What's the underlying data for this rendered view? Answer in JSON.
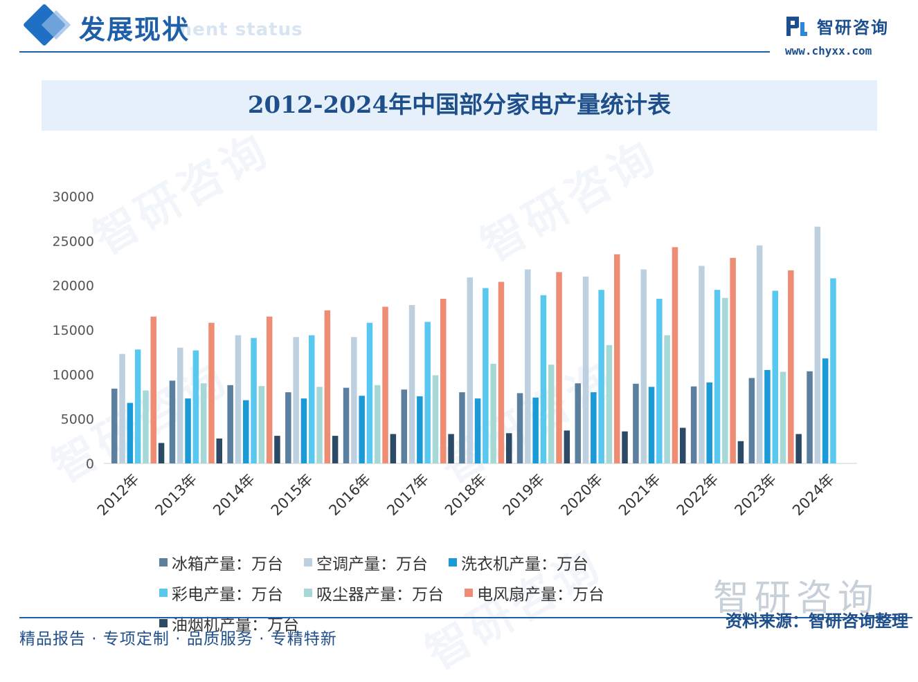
{
  "header": {
    "section_title": "发展现状",
    "section_subtitle": "ment status",
    "logo_name": "智研咨询",
    "logo_url": "www.chyxx.com"
  },
  "chart_data": {
    "type": "bar",
    "title": "2012-2024年中国部分家电产量统计表",
    "categories": [
      "2012年",
      "2013年",
      "2014年",
      "2015年",
      "2016年",
      "2017年",
      "2018年",
      "2019年",
      "2020年",
      "2021年",
      "2022年",
      "2023年",
      "2024年"
    ],
    "ylim": [
      0,
      30000
    ],
    "yticks": [
      0,
      5000,
      10000,
      15000,
      20000,
      25000,
      30000
    ],
    "grid": false,
    "legend_position": "bottom",
    "series": [
      {
        "name": "冰箱产量：万台",
        "color": "#5b7f9e",
        "values": [
          8400,
          9300,
          8800,
          8000,
          8500,
          8300,
          8000,
          7900,
          9000,
          8950,
          8650,
          9600,
          10350
        ]
      },
      {
        "name": "空调产量：万台",
        "color": "#bdd0e0",
        "values": [
          12300,
          13000,
          14400,
          14200,
          14200,
          17800,
          20900,
          21800,
          21000,
          21800,
          22200,
          24500,
          26600
        ]
      },
      {
        "name": "洗衣机产量：万台",
        "color": "#1a9ad6",
        "values": [
          6800,
          7300,
          7100,
          7300,
          7600,
          7550,
          7300,
          7400,
          8000,
          8600,
          9100,
          10500,
          11800
        ]
      },
      {
        "name": "彩电产量：万台",
        "color": "#58c8f0",
        "values": [
          12800,
          12700,
          14100,
          14400,
          15800,
          15900,
          19700,
          18900,
          19500,
          18500,
          19500,
          19400,
          20800
        ]
      },
      {
        "name": "吸尘器产量：万台",
        "color": "#a7d8d8",
        "values": [
          8200,
          9000,
          8700,
          8600,
          8800,
          9900,
          11200,
          11100,
          13300,
          14400,
          18600,
          10300,
          null
        ]
      },
      {
        "name": "电风扇产量：万台",
        "color": "#ee8c74",
        "values": [
          16500,
          15800,
          16500,
          17200,
          17600,
          18500,
          20400,
          21500,
          23500,
          24300,
          23100,
          21700,
          null
        ]
      },
      {
        "name": "油烟机产量：万台",
        "color": "#2c4a66",
        "values": [
          2300,
          2800,
          3100,
          3100,
          3300,
          3300,
          3400,
          3700,
          3600,
          4000,
          2500,
          3300,
          null
        ]
      }
    ]
  },
  "footer": {
    "slogan": "精品报告 · 专项定制 · 品质服务 · 专精特新",
    "source": "资料来源：智研咨询整理"
  }
}
